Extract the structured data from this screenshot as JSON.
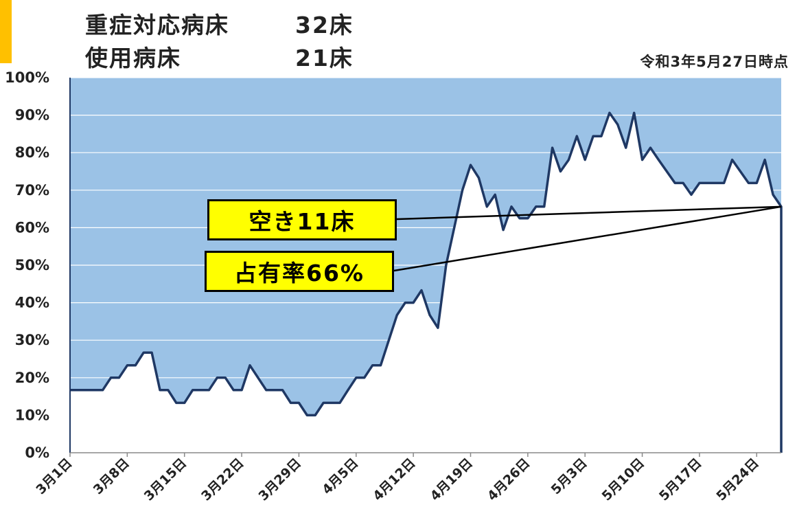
{
  "header": {
    "row1_label": "重症対応病床",
    "row1_value": "32床",
    "row2_label": "使用病床",
    "row2_value": "21床",
    "timestamp": "令和3年5月27日時点"
  },
  "callouts": {
    "vacant": "空き11床",
    "occupancy": "占有率66%"
  },
  "colors": {
    "fill_area": "#9BC2E6",
    "line": "#1F3864",
    "callout_bg": "#FFFF00",
    "accent": "#FFC000"
  },
  "chart_data": {
    "type": "area",
    "title": "",
    "xlabel": "",
    "ylabel": "",
    "ylim": [
      0,
      100
    ],
    "y_ticks": [
      "0%",
      "10%",
      "20%",
      "30%",
      "40%",
      "50%",
      "60%",
      "70%",
      "80%",
      "90%",
      "100%"
    ],
    "x_tick_labels": [
      "3月1日",
      "3月8日",
      "3月15日",
      "3月22日",
      "3月29日",
      "4月5日",
      "4月12日",
      "4月19日",
      "4月26日",
      "5月3日",
      "5月10日",
      "5月17日",
      "5月24日"
    ],
    "grid": true,
    "series": [
      {
        "values": [
          16.7,
          16.7,
          16.7,
          16.7,
          16.7,
          20,
          20,
          23.3,
          23.3,
          26.7,
          26.7,
          16.7,
          16.7,
          13.3,
          13.3,
          16.7,
          16.7,
          16.7,
          20,
          20,
          16.7,
          16.7,
          23.3,
          20,
          16.7,
          16.7,
          16.7,
          13.3,
          13.3,
          10,
          10,
          13.3,
          13.3,
          13.3,
          16.7,
          20,
          20,
          23.3,
          23.3,
          30,
          36.7,
          40,
          40,
          43.3,
          36.7,
          33.3,
          50,
          60,
          70,
          76.7,
          73.3,
          65.6,
          68.8,
          59.4,
          65.6,
          62.5,
          62.5,
          65.6,
          65.6,
          81.3,
          75,
          78.1,
          84.4,
          78.1,
          84.4,
          84.4,
          90.6,
          87.5,
          81.3,
          90.6,
          78.1,
          81.3,
          78.1,
          75,
          71.9,
          71.9,
          68.8,
          71.9,
          71.9,
          71.9,
          71.9,
          78.1,
          75,
          71.9,
          71.9,
          78.1,
          68.8,
          65.6
        ]
      }
    ]
  }
}
